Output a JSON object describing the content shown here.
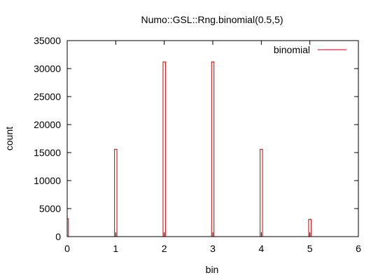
{
  "chart_data": {
    "type": "bar",
    "title": "Numo::GSL::Rng.binomial(0.5,5)",
    "xlabel": "bin",
    "ylabel": "count",
    "xlim": [
      0,
      6
    ],
    "ylim": [
      0,
      35000
    ],
    "xticks": [
      "0",
      "1",
      "2",
      "3",
      "4",
      "5",
      "6"
    ],
    "yticks": [
      "0",
      "5000",
      "10000",
      "15000",
      "20000",
      "25000",
      "30000",
      "35000"
    ],
    "grid": false,
    "legend_position": "top-right",
    "series": [
      {
        "name": "binomial",
        "color": "#cc0000",
        "bar_width": 0.05,
        "points": [
          {
            "x": 0,
            "y": 3200
          },
          {
            "x": 1,
            "y": 15600
          },
          {
            "x": 2,
            "y": 31200
          },
          {
            "x": 3,
            "y": 31200
          },
          {
            "x": 4,
            "y": 15600
          },
          {
            "x": 5,
            "y": 3100
          }
        ]
      }
    ]
  }
}
